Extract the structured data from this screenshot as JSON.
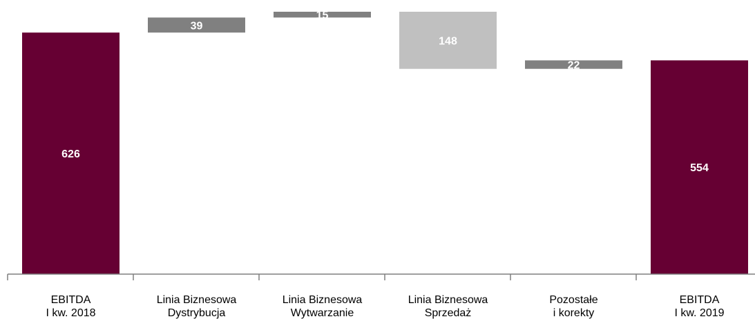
{
  "chart_data": {
    "type": "bar",
    "subtype": "waterfall",
    "title": "",
    "xlabel": "",
    "ylabel": "",
    "categories": [
      [
        "EBITDA",
        "I kw. 2018"
      ],
      [
        "Linia Biznesowa",
        "Dystrybucja"
      ],
      [
        "Linia Biznesowa",
        "Wytwarzanie"
      ],
      [
        "Linia Biznesowa",
        "Sprzedaż"
      ],
      [
        "Pozostałe",
        "i korekty"
      ],
      [
        "EBITDA",
        "I kw. 2019"
      ]
    ],
    "bars": [
      {
        "label": "626",
        "start": 0,
        "end": 626,
        "color_key": "total"
      },
      {
        "label": "39",
        "start": 626,
        "end": 665,
        "color_key": "increase"
      },
      {
        "label": "15",
        "start": 665,
        "end": 680,
        "color_key": "increase"
      },
      {
        "label": "148",
        "start": 680,
        "end": 532,
        "color_key": "decrease"
      },
      {
        "label": "22",
        "start": 532,
        "end": 554,
        "color_key": "increase"
      },
      {
        "label": "554",
        "start": 0,
        "end": 554,
        "color_key": "total"
      }
    ],
    "ylim": [
      0,
      680
    ],
    "grid": false,
    "colors": {
      "total": "#660033",
      "increase": "#808080",
      "decrease": "#c0c0c0",
      "axis": "#7f7f7f"
    }
  }
}
